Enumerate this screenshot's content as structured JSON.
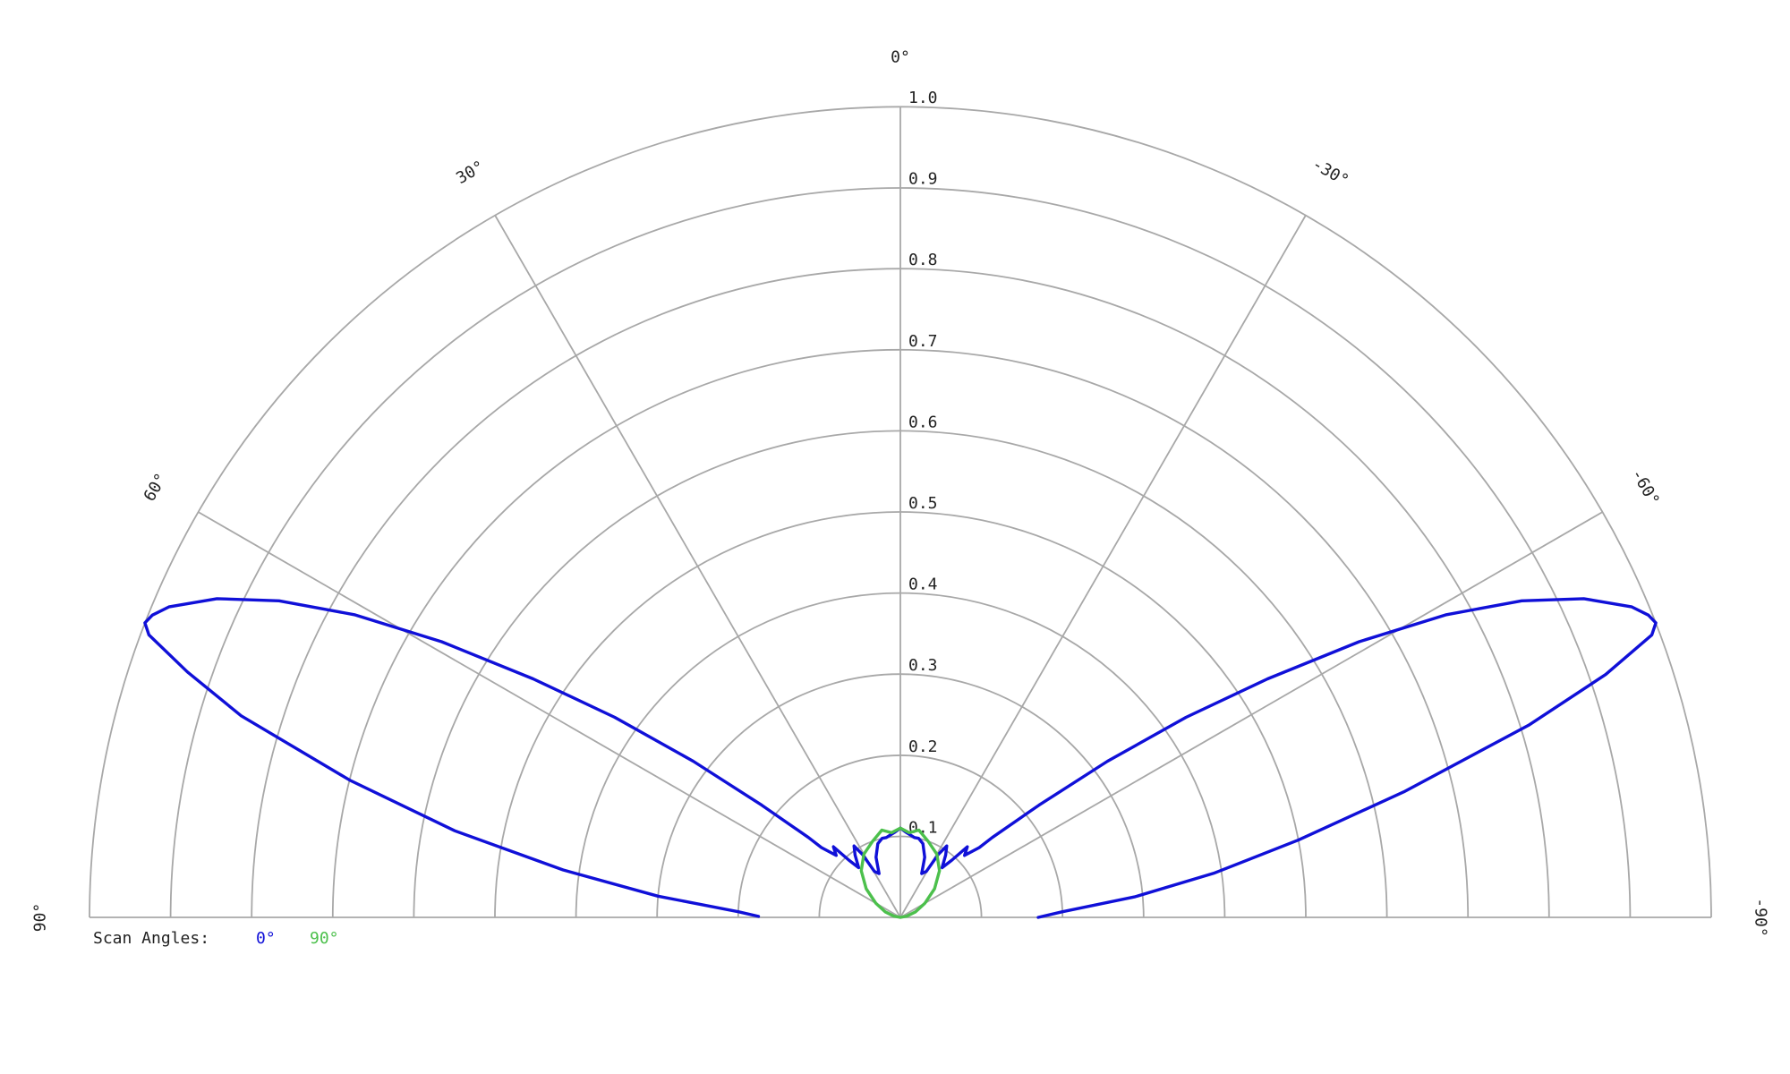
{
  "chart_data": {
    "type": "polar",
    "title": "",
    "theta_range": [
      -90,
      90
    ],
    "theta_direction": "counterclockwise-positive-left",
    "r_range": [
      0,
      1.0
    ],
    "grid": true,
    "radial_ticks": [
      0.1,
      0.2,
      0.3,
      0.4,
      0.5,
      0.6,
      0.7,
      0.8,
      0.9,
      1.0
    ],
    "radial_tick_labels": [
      "0.1",
      "0.2",
      "0.3",
      "0.4",
      "0.5",
      "0.6",
      "0.7",
      "0.8",
      "0.9",
      "1.0"
    ],
    "angle_ticks": [
      90,
      60,
      30,
      0,
      -30,
      -60,
      -90
    ],
    "angle_tick_labels": [
      "90°",
      "60°",
      "30°",
      "0°",
      "-30°",
      "-60°",
      "-90°"
    ],
    "legend": {
      "title": "Scan Angles:",
      "placement": "bottom-left",
      "entries": [
        "0°",
        "90°"
      ]
    },
    "series": [
      {
        "name": "0°",
        "color": "#1010d8",
        "points": [
          [
            -90.0,
            0.17
          ],
          [
            -88.0,
            0.2
          ],
          [
            -85.0,
            0.29
          ],
          [
            -82.0,
            0.39
          ],
          [
            -79.0,
            0.5
          ],
          [
            -76.0,
            0.64
          ],
          [
            -73.0,
            0.81
          ],
          [
            -71.0,
            0.92
          ],
          [
            -69.4,
            0.99
          ],
          [
            -68.7,
            1.0
          ],
          [
            -68.0,
            0.995
          ],
          [
            -67.0,
            0.98
          ],
          [
            -65.0,
            0.93
          ],
          [
            -63.0,
            0.86
          ],
          [
            -61.0,
            0.77
          ],
          [
            -59.0,
            0.66
          ],
          [
            -57.0,
            0.54
          ],
          [
            -55.0,
            0.43
          ],
          [
            -53.0,
            0.32
          ],
          [
            -51.0,
            0.22
          ],
          [
            -49.0,
            0.15
          ],
          [
            -48.5,
            0.13
          ],
          [
            -46.0,
            0.11
          ],
          [
            -43.5,
            0.12
          ],
          [
            -42.0,
            0.095
          ],
          [
            -40.0,
            0.08
          ],
          [
            -36.0,
            0.095
          ],
          [
            -33.0,
            0.105
          ],
          [
            -31.0,
            0.09
          ],
          [
            -29.5,
            0.065
          ],
          [
            -26.0,
            0.06
          ],
          [
            -22.0,
            0.08
          ],
          [
            -17.0,
            0.095
          ],
          [
            -13.0,
            0.1
          ],
          [
            -10.0,
            0.1
          ],
          [
            -4.0,
            0.105
          ],
          [
            0.0,
            0.11
          ],
          [
            4.0,
            0.105
          ],
          [
            10.0,
            0.1
          ],
          [
            13.0,
            0.1
          ],
          [
            17.0,
            0.095
          ],
          [
            22.0,
            0.08
          ],
          [
            26.0,
            0.06
          ],
          [
            29.5,
            0.065
          ],
          [
            31.0,
            0.09
          ],
          [
            33.0,
            0.105
          ],
          [
            36.0,
            0.095
          ],
          [
            40.0,
            0.08
          ],
          [
            42.0,
            0.095
          ],
          [
            43.5,
            0.12
          ],
          [
            46.0,
            0.11
          ],
          [
            48.5,
            0.13
          ],
          [
            49.0,
            0.15
          ],
          [
            51.0,
            0.22
          ],
          [
            53.0,
            0.32
          ],
          [
            55.0,
            0.43
          ],
          [
            57.0,
            0.54
          ],
          [
            59.0,
            0.66
          ],
          [
            61.0,
            0.77
          ],
          [
            63.0,
            0.86
          ],
          [
            65.0,
            0.93
          ],
          [
            67.0,
            0.98
          ],
          [
            68.0,
            0.995
          ],
          [
            68.7,
            1.0
          ],
          [
            69.4,
            0.99
          ],
          [
            71.0,
            0.93
          ],
          [
            73.0,
            0.85
          ],
          [
            76.0,
            0.7
          ],
          [
            79.0,
            0.56
          ],
          [
            82.0,
            0.42
          ],
          [
            85.0,
            0.3
          ],
          [
            88.0,
            0.2
          ],
          [
            89.6,
            0.175
          ]
        ]
      },
      {
        "name": "90°",
        "color": "#4cc04c",
        "points": [
          [
            -90.0,
            0.0
          ],
          [
            -80.0,
            0.008
          ],
          [
            -70.0,
            0.02
          ],
          [
            -60.0,
            0.035
          ],
          [
            -50.0,
            0.055
          ],
          [
            -40.0,
            0.075
          ],
          [
            -30.0,
            0.09
          ],
          [
            -20.0,
            0.1
          ],
          [
            -12.0,
            0.11
          ],
          [
            -6.0,
            0.105
          ],
          [
            0.0,
            0.11
          ],
          [
            6.0,
            0.105
          ],
          [
            12.0,
            0.11
          ],
          [
            20.0,
            0.1
          ],
          [
            30.0,
            0.09
          ],
          [
            40.0,
            0.075
          ],
          [
            50.0,
            0.055
          ],
          [
            60.0,
            0.035
          ],
          [
            70.0,
            0.02
          ],
          [
            80.0,
            0.008
          ],
          [
            90.0,
            0.0
          ]
        ]
      }
    ]
  }
}
